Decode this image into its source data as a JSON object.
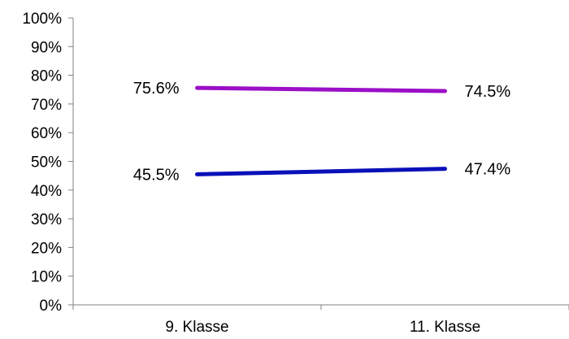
{
  "chart_data": {
    "type": "line",
    "title": "",
    "xlabel": "",
    "ylabel": "",
    "categories": [
      "9. Klasse",
      "11. Klasse"
    ],
    "ylim": [
      0,
      100
    ],
    "yticks": [
      0,
      10,
      20,
      30,
      40,
      50,
      60,
      70,
      80,
      90,
      100
    ],
    "ytick_labels": [
      "0%",
      "10%",
      "20%",
      "30%",
      "40%",
      "50%",
      "60%",
      "70%",
      "80%",
      "90%",
      "100%"
    ],
    "grid": false,
    "legend": "none",
    "series": [
      {
        "color": "#9b0fc7",
        "values": [
          75.6,
          74.5
        ],
        "labels": [
          "75.6%",
          "74.5%"
        ]
      },
      {
        "color": "#0a10b8",
        "values": [
          45.5,
          47.4
        ],
        "labels": [
          "45.5%",
          "47.4%"
        ]
      }
    ]
  }
}
